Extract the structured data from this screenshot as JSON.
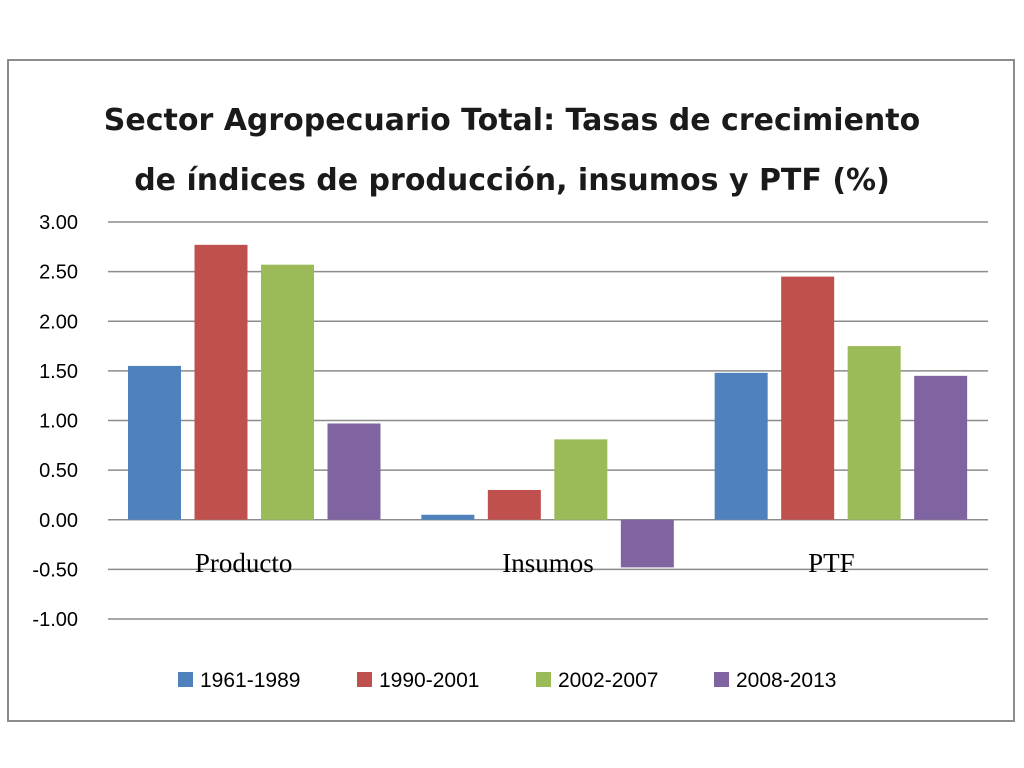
{
  "chart_data": {
    "type": "bar",
    "title": [
      "Sector Agropecuario Total: Tasas de crecimiento",
      "de índices de producción, insumos y PTF (%)"
    ],
    "categories": [
      "Producto",
      "Insumos",
      "PTF"
    ],
    "series": [
      {
        "name": "1961-1989",
        "color": "#4f81bd",
        "values": [
          1.55,
          0.05,
          1.48
        ]
      },
      {
        "name": "1990-2001",
        "color": "#c0504d",
        "values": [
          2.77,
          0.3,
          2.45
        ]
      },
      {
        "name": "2002-2007",
        "color": "#9bbb59",
        "values": [
          2.57,
          0.81,
          1.75
        ]
      },
      {
        "name": "2008-2013",
        "color": "#8064a2",
        "values": [
          0.97,
          -0.48,
          1.45
        ]
      }
    ],
    "ylim": [
      -1.0,
      3.0
    ],
    "yticks": [
      "3.00",
      "2.50",
      "2.00",
      "1.50",
      "1.00",
      "0.50",
      "0.00",
      "-0.50",
      "-1.00"
    ],
    "ytick_values": [
      3.0,
      2.5,
      2.0,
      1.5,
      1.0,
      0.5,
      0.0,
      -0.5,
      -1.0
    ],
    "grid": true,
    "legend": "bottom",
    "xlabel": "",
    "ylabel": ""
  }
}
